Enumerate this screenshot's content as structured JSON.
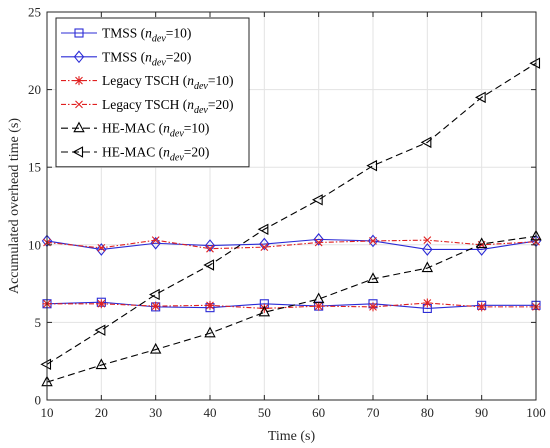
{
  "chart_data": {
    "type": "line",
    "xlabel": "Time (s)",
    "ylabel": "Accumulated overhead time  (s)",
    "xlim": [
      10,
      100
    ],
    "ylim": [
      0,
      25
    ],
    "xticks": [
      10,
      20,
      30,
      40,
      50,
      60,
      70,
      80,
      90,
      100
    ],
    "yticks": [
      0,
      5,
      10,
      15,
      20,
      25
    ],
    "grid": true,
    "legend_position": "top-left",
    "x": [
      10,
      20,
      30,
      40,
      50,
      60,
      70,
      80,
      90,
      100
    ],
    "series": [
      {
        "name": "TMSS (n_dev=10)",
        "base": "TMSS (",
        "sub": "dev",
        "tail": "=10)",
        "color": "#2b2bd6",
        "dash": "",
        "marker": "square",
        "values": [
          6.2,
          6.3,
          6.0,
          5.95,
          6.2,
          6.05,
          6.2,
          5.9,
          6.1,
          6.1
        ]
      },
      {
        "name": "TMSS (n_dev=20)",
        "base": "TMSS (",
        "sub": "dev",
        "tail": "=20)",
        "color": "#2b2bd6",
        "dash": "",
        "marker": "diamond",
        "values": [
          10.25,
          9.7,
          10.1,
          9.95,
          10.05,
          10.35,
          10.25,
          9.7,
          9.7,
          10.25
        ]
      },
      {
        "name": "Legacy TSCH (n_dev=10)",
        "base": "Legacy TSCH (",
        "sub": "dev",
        "tail": "=10)",
        "color": "#e02020",
        "dash": "5,2,1.5,2",
        "marker": "star",
        "values": [
          6.2,
          6.2,
          6.05,
          6.1,
          5.9,
          6.05,
          6.0,
          6.25,
          6.0,
          6.0
        ]
      },
      {
        "name": "Legacy TSCH (n_dev=20)",
        "base": "Legacy TSCH (",
        "sub": "dev",
        "tail": "=20)",
        "color": "#e02020",
        "dash": "5,2,1.5,2",
        "marker": "x",
        "values": [
          10.15,
          9.8,
          10.3,
          9.75,
          9.85,
          10.15,
          10.25,
          10.3,
          10.0,
          10.2
        ]
      },
      {
        "name": "HE-MAC (n_dev=10)",
        "base": "HE-MAC (",
        "sub": "dev",
        "tail": "=10)",
        "color": "#000000",
        "dash": "7,4",
        "marker": "triangle-up",
        "values": [
          1.15,
          2.25,
          3.25,
          4.3,
          5.65,
          6.5,
          7.8,
          8.5,
          10.05,
          10.55
        ]
      },
      {
        "name": "HE-MAC (n_dev=20)",
        "base": "HE-MAC (",
        "sub": "dev",
        "tail": "=20)",
        "color": "#000000",
        "dash": "7,4",
        "marker": "triangle-left",
        "values": [
          2.3,
          4.5,
          6.8,
          8.7,
          11.0,
          12.9,
          15.1,
          16.6,
          19.5,
          21.7
        ]
      }
    ]
  }
}
